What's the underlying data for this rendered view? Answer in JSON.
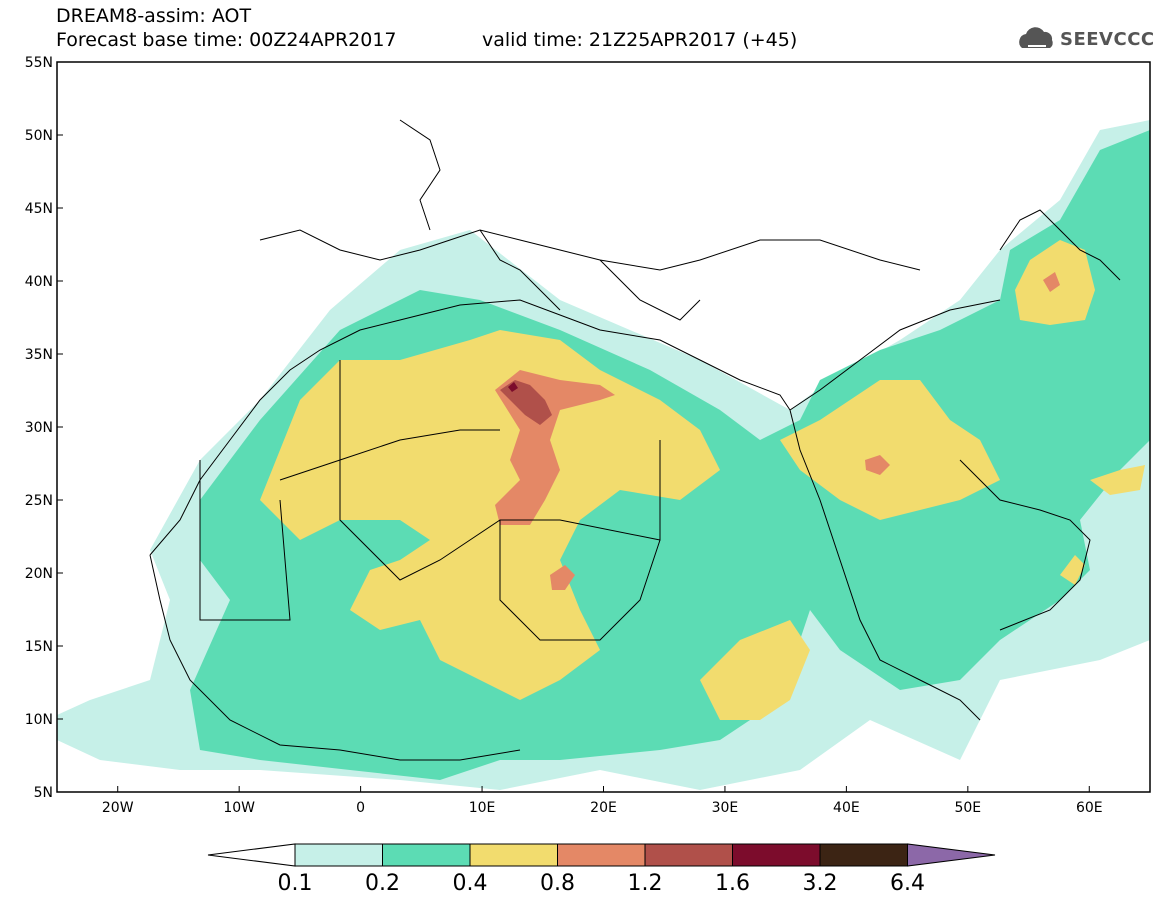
{
  "title": {
    "line1": "DREAM8-assim: AOT",
    "line2": "Forecast base time: 00Z24APR2017",
    "valid": "valid time: 21Z25APR2017 (+45)"
  },
  "logo": {
    "text": "SEEVCCC",
    "icon": "cloud-icon"
  },
  "map": {
    "lat_ticks": [
      "55N",
      "50N",
      "45N",
      "40N",
      "35N",
      "30N",
      "25N",
      "20N",
      "15N",
      "10N",
      "5N"
    ],
    "lon_ticks": [
      "20W",
      "10W",
      "0",
      "10E",
      "20E",
      "30E",
      "40E",
      "50E",
      "60E"
    ],
    "lon_range": [
      -25,
      65
    ],
    "lat_range": [
      5,
      55
    ]
  },
  "colorbar": {
    "labels": [
      "0.1",
      "0.2",
      "0.4",
      "0.8",
      "1.2",
      "1.6",
      "3.2",
      "6.4"
    ],
    "colors": [
      "#ffffff",
      "#c6f0e8",
      "#5cdcb4",
      "#f2dc6e",
      "#e48866",
      "#b0504a",
      "#7c0c2c",
      "#3c2414",
      "#8c68a8"
    ]
  },
  "colors": {
    "c01": "#c6f0e8",
    "c02": "#5cdcb4",
    "c04": "#f2dc6e",
    "c08": "#e48866",
    "c12": "#b0504a",
    "c16": "#7c0c2c"
  }
}
